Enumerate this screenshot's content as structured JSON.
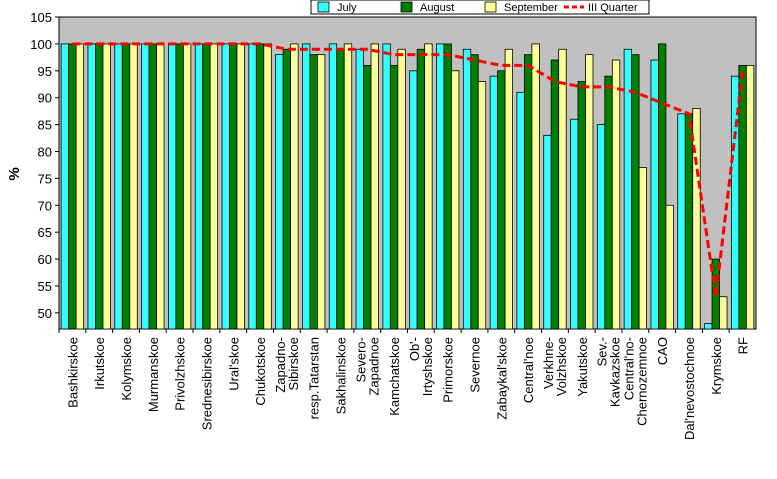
{
  "chart_data": {
    "type": "bar",
    "ylabel": "%",
    "ylim": [
      47,
      105
    ],
    "yticks": [
      50,
      55,
      60,
      65,
      70,
      75,
      80,
      85,
      90,
      95,
      100,
      105
    ],
    "grid": false,
    "legend_position": "top-right",
    "categories": [
      "Bashkirskoe",
      "Irkutskoe",
      "Kolymskoe",
      "Murmanskoe",
      "Privolzhskoe",
      "Srednesibirskoe",
      "Ural'skoe",
      "Chukotskoe",
      "Zapadno-Sibirskoe",
      "resp.Tatarstan",
      "Sakhalinskoe",
      "Severo-Zapadnoe",
      "Kamchatskoe",
      "Ob'-Irtyshskoe",
      "Primorskoe",
      "Severnoe",
      "Zabaykal'skoe",
      "Central'noe",
      "Verkhne-Volzhskoe",
      "Yakutskoe",
      "Sev.-Kavkazskoe",
      "Central'no-Chernozemnoe",
      "CAO",
      "Dal'nevostochnoe",
      "Krymskoe",
      "RF"
    ],
    "series": [
      {
        "name": "July",
        "kind": "bar",
        "color": "#33ffff",
        "values": [
          100,
          100,
          100,
          100,
          100,
          100,
          100,
          100,
          98,
          100,
          100,
          99,
          100,
          95,
          100,
          99,
          94,
          91,
          83,
          86,
          85,
          99,
          97,
          87,
          48,
          94
        ]
      },
      {
        "name": "August",
        "kind": "bar",
        "color": "#008000",
        "values": [
          100,
          100,
          100,
          100,
          100,
          100,
          100,
          100,
          99,
          98,
          99,
          96,
          96,
          99,
          100,
          98,
          95,
          98,
          97,
          93,
          94,
          98,
          100,
          87,
          60,
          96
        ]
      },
      {
        "name": "September",
        "kind": "bar",
        "color": "#ffff99",
        "values": [
          100,
          100,
          100,
          100,
          100,
          100,
          100,
          100,
          100,
          98,
          100,
          100,
          99,
          100,
          95,
          93,
          99,
          100,
          99,
          98,
          97,
          77,
          70,
          88,
          53,
          96
        ]
      },
      {
        "name": "III Quarter",
        "kind": "line",
        "color": "#ff0000",
        "dashed": true,
        "values": [
          100,
          100,
          100,
          100,
          100,
          100,
          100,
          100,
          99,
          99,
          99,
          99,
          98,
          98,
          98,
          97,
          96,
          96,
          93,
          92,
          92,
          91,
          89,
          87,
          53,
          95
        ]
      }
    ]
  }
}
